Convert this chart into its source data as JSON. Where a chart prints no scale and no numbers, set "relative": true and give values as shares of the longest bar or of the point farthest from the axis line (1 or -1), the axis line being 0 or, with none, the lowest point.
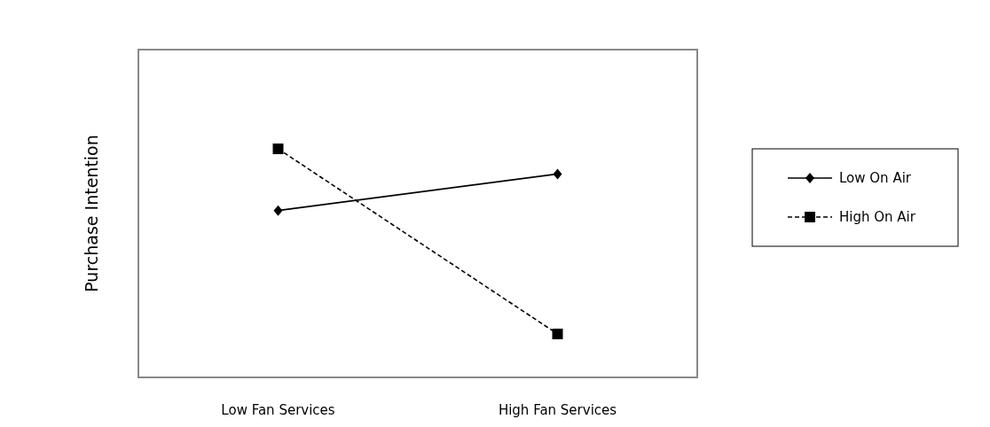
{
  "chart_data": {
    "type": "line",
    "relative": true,
    "ylabel": "Purchase Intention",
    "categories": [
      "Low Fan Services",
      "High Fan Services"
    ],
    "legend": "right",
    "series": [
      {
        "name": "Low On Air",
        "color": "#000000",
        "values": [
          0.73,
          0.89
        ],
        "marker": "diamond",
        "line_style": "solid"
      },
      {
        "name": "High On Air",
        "color": "#000000",
        "values": [
          1,
          0.19
        ],
        "marker": "square",
        "line_style": "dashed"
      }
    ]
  }
}
